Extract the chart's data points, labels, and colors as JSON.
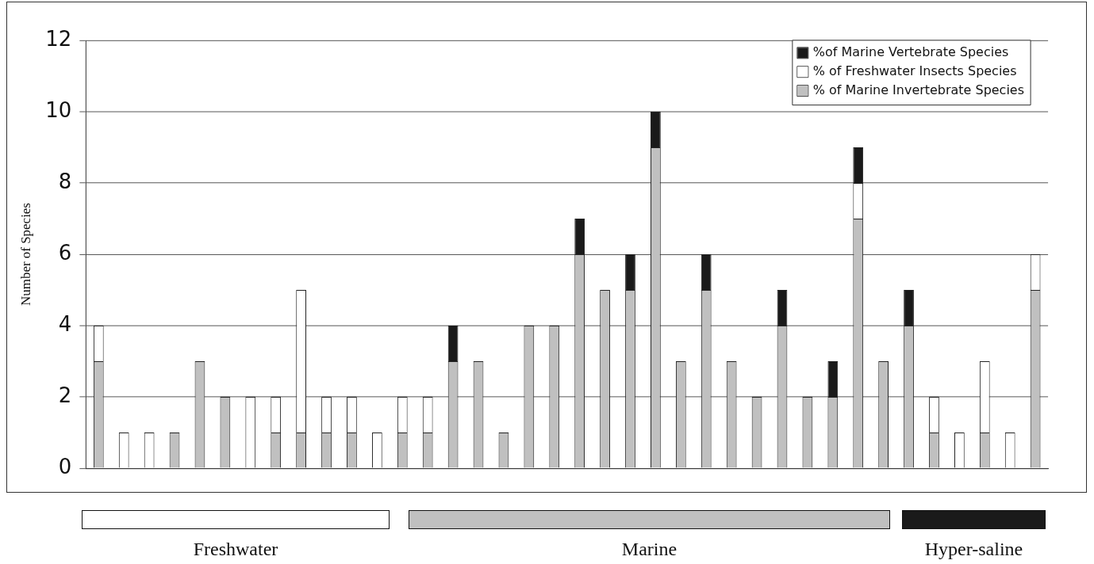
{
  "chart_data": {
    "type": "bar",
    "stacked": true,
    "ylabel": "Number of Species",
    "categories": [
      null,
      null,
      null,
      null,
      null,
      null,
      null,
      null,
      null,
      null,
      null,
      null,
      null,
      null,
      null,
      null,
      null,
      null,
      null,
      null,
      null,
      null,
      null,
      null,
      null,
      null,
      null,
      null,
      null,
      null,
      null,
      null,
      null,
      null,
      null,
      null,
      null,
      null
    ],
    "series": [
      {
        "name": "% of Marine Invertebrate Species",
        "color": "#c0c0c0",
        "values": [
          3,
          0,
          0,
          1,
          3,
          2,
          0,
          1,
          1,
          1,
          1,
          0,
          1,
          1,
          3,
          3,
          1,
          4,
          4,
          6,
          5,
          5,
          9,
          3,
          5,
          3,
          2,
          4,
          2,
          2,
          7,
          3,
          4,
          1,
          0,
          1,
          0,
          5
        ]
      },
      {
        "name": "% of Freshwater Insects Species",
        "color": "#ffffff",
        "values": [
          1,
          1,
          1,
          0,
          0,
          0,
          2,
          1,
          4,
          1,
          1,
          1,
          1,
          1,
          0,
          0,
          0,
          0,
          0,
          0,
          0,
          0,
          0,
          0,
          0,
          0,
          0,
          0,
          0,
          0,
          1,
          0,
          0,
          1,
          1,
          2,
          1,
          1
        ]
      },
      {
        "name": "%of Marine Vertebrate Species",
        "color": "#1a1a1a",
        "values": [
          0,
          0,
          0,
          0,
          0,
          0,
          0,
          0,
          0,
          0,
          0,
          0,
          0,
          0,
          1,
          0,
          0,
          0,
          0,
          1,
          0,
          1,
          1,
          0,
          1,
          0,
          0,
          1,
          0,
          1,
          1,
          0,
          1,
          0,
          0,
          0,
          0,
          0
        ]
      }
    ],
    "ylim": [
      0,
      12
    ],
    "yticks": [
      0,
      2,
      4,
      6,
      8,
      10,
      12
    ],
    "grid": "y",
    "legend": "top right",
    "tick_labels": "y",
    "annotations": [
      "Freshwater",
      "Marine",
      "Hyper-saline"
    ]
  }
}
